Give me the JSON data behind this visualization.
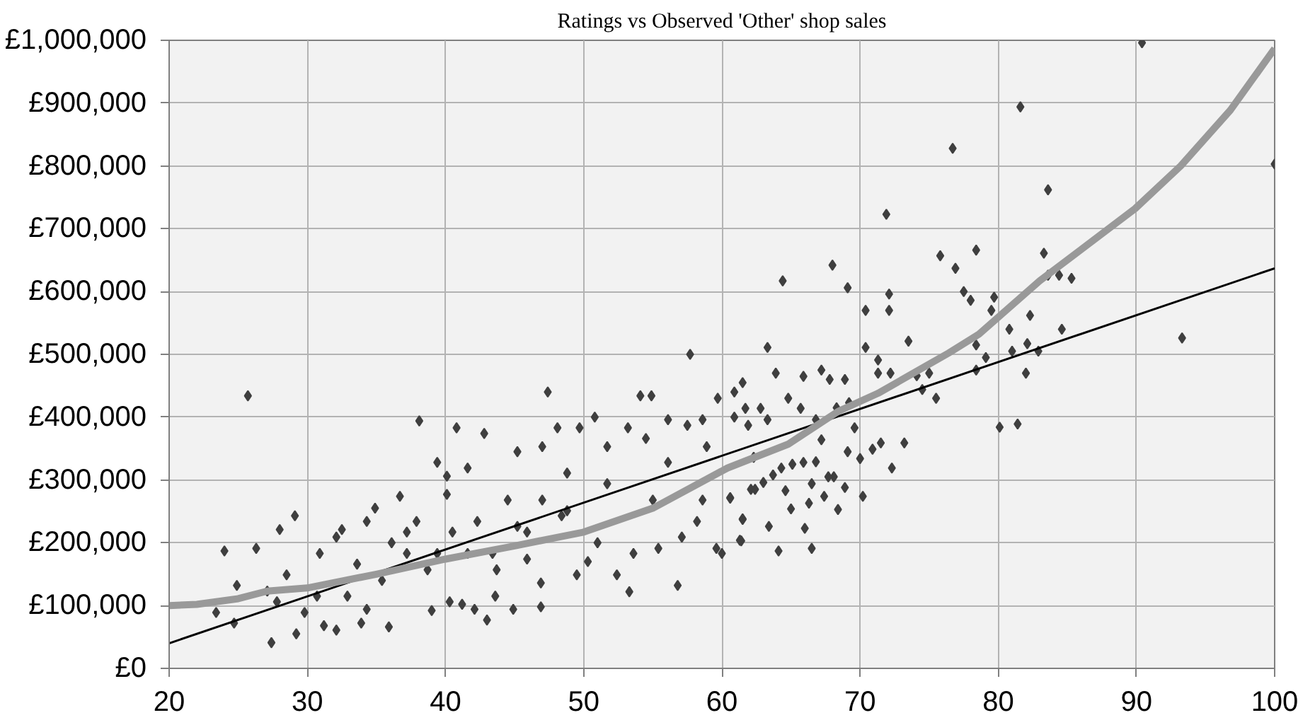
{
  "chart_data": {
    "type": "scatter",
    "title": "Ratings vs Observed 'Other' shop sales",
    "xlim": [
      20,
      100
    ],
    "ylim": [
      0,
      1000000
    ],
    "xticks": [
      20,
      30,
      40,
      50,
      60,
      70,
      80,
      90,
      100
    ],
    "yticks": [
      {
        "value": 0,
        "label": "£0"
      },
      {
        "value": 100000,
        "label": "£100,000"
      },
      {
        "value": 200000,
        "label": "£200,000"
      },
      {
        "value": 300000,
        "label": "£300,000"
      },
      {
        "value": 400000,
        "label": "£400,000"
      },
      {
        "value": 500000,
        "label": "£500,000"
      },
      {
        "value": 600000,
        "label": "£600,000"
      },
      {
        "value": 700000,
        "label": "£700,000"
      },
      {
        "value": 800000,
        "label": "£800,000"
      },
      {
        "value": 900000,
        "label": "£900,000"
      },
      {
        "value": 1000000,
        "label": "£1,000,000"
      }
    ],
    "grid": true,
    "series": [
      {
        "marker": "diamond",
        "color": "#3f3f3f",
        "x": [
          25.7,
          24.0,
          27.4,
          29.2,
          28.0,
          29.1,
          24.9,
          26.3,
          24.7,
          23.4,
          27.1,
          28.5,
          30.9,
          32.1,
          32.5,
          32.1,
          31.2,
          33.9,
          35.9,
          34.9,
          34.3,
          36.7,
          38.1,
          37.9,
          39.0,
          37.2,
          35.4,
          33.6,
          32.9,
          34.3,
          39.4,
          40.1,
          40.8,
          40.1,
          40.3,
          41.2,
          39.4,
          40.5,
          41.6,
          42.8,
          43.0,
          42.1,
          44.9,
          43.6,
          45.2,
          47.0,
          47.4,
          46.9,
          46.9,
          45.9,
          44.5,
          43.4,
          42.3,
          48.1,
          48.8,
          49.5,
          50.3,
          50.8,
          49.7,
          51.7,
          51.7,
          48.8,
          51.0,
          52.4,
          53.3,
          54.1,
          54.9,
          54.5,
          53.2,
          53.6,
          55.0,
          56.1,
          56.8,
          57.7,
          57.5,
          58.6,
          58.2,
          57.1,
          59.6,
          59.7,
          60.0,
          60.9,
          61.5,
          61.3,
          61.5,
          61.9,
          60.6,
          58.9,
          56.1,
          55.4,
          58.6,
          62.4,
          37.2,
          38.7,
          36.1,
          41.6,
          45.2,
          47.0,
          48.4,
          45.9,
          43.7,
          30.7,
          29.8,
          27.8,
          90.4,
          81.6,
          76.7,
          83.6,
          100.0,
          71.9,
          75.8,
          78.4,
          76.9,
          83.3,
          83.6,
          84.4,
          85.3,
          68.0,
          64.4,
          69.1,
          70.4,
          72.1,
          72.1,
          77.5,
          78.0,
          79.7,
          79.5,
          82.3,
          80.8,
          81.0,
          82.1,
          82.9,
          84.6,
          93.3,
          82.0,
          80.1,
          81.4,
          79.1,
          78.4,
          78.4,
          73.5,
          75.5,
          75.0,
          74.1,
          74.5,
          70.4,
          71.3,
          71.3,
          72.2,
          73.2,
          72.3,
          71.5,
          70.9,
          70.0,
          70.2,
          69.6,
          69.2,
          68.9,
          67.8,
          67.2,
          65.9,
          63.3,
          63.9,
          60.9,
          61.7,
          62.8,
          63.3,
          64.8,
          65.7,
          66.8,
          68.3,
          67.2,
          69.1,
          68.1,
          68.9,
          68.4,
          67.4,
          66.5,
          66.3,
          66.5,
          66.0,
          65.0,
          64.1,
          63.4,
          61.4,
          61.5,
          62.1,
          63.0,
          64.3,
          65.1,
          65.9,
          66.8,
          67.7,
          64.6,
          63.7,
          62.3,
          60.6
        ],
        "values": [
          434000,
          187000,
          41000,
          55000,
          221000,
          243000,
          132000,
          191000,
          72000,
          89000,
          123000,
          149000,
          183000,
          209000,
          221000,
          61000,
          68000,
          72000,
          66000,
          255000,
          234000,
          274000,
          394000,
          234000,
          92000,
          183000,
          140000,
          166000,
          115000,
          94000,
          328000,
          306000,
          383000,
          277000,
          106000,
          102000,
          183000,
          217000,
          319000,
          374000,
          77000,
          94000,
          94000,
          115000,
          345000,
          353000,
          440000,
          98000,
          136000,
          217000,
          268000,
          183000,
          234000,
          383000,
          311000,
          149000,
          170000,
          400000,
          383000,
          353000,
          294000,
          251000,
          200000,
          149000,
          122000,
          434000,
          434000,
          366000,
          383000,
          183000,
          268000,
          396000,
          132000,
          500000,
          387000,
          396000,
          234000,
          209000,
          191000,
          430000,
          183000,
          440000,
          455000,
          204000,
          238000,
          387000,
          272000,
          353000,
          328000,
          191000,
          268000,
          285000,
          217000,
          157000,
          200000,
          183000,
          226000,
          268000,
          243000,
          174000,
          157000,
          115000,
          89000,
          106000,
          996000,
          894000,
          828000,
          762000,
          803000,
          723000,
          657000,
          666000,
          637000,
          661000,
          626000,
          626000,
          621000,
          642000,
          617000,
          606000,
          570000,
          596000,
          570000,
          600000,
          586000,
          591000,
          570000,
          562000,
          540000,
          505000,
          517000,
          505000,
          540000,
          526000,
          470000,
          384000,
          389000,
          495000,
          475000,
          515000,
          521000,
          430000,
          470000,
          466000,
          444000,
          511000,
          491000,
          470000,
          470000,
          359000,
          319000,
          359000,
          349000,
          334000,
          274000,
          383000,
          423000,
          460000,
          460000,
          475000,
          465000,
          511000,
          470000,
          400000,
          414000,
          414000,
          396000,
          430000,
          414000,
          396000,
          415000,
          364000,
          345000,
          305000,
          288000,
          253000,
          274000,
          294000,
          263000,
          191000,
          223000,
          254000,
          187000,
          226000,
          203000,
          237000,
          285000,
          296000,
          319000,
          325000,
          328000,
          329000,
          305000,
          283000,
          308000,
          336000,
          271000
        ]
      },
      {
        "type": "line",
        "color": "#000000",
        "x": [
          20,
          100
        ],
        "values": [
          40000,
          637000
        ]
      },
      {
        "type": "line",
        "color": "#999999",
        "x": [
          20,
          22,
          25,
          27.1,
          30,
          35,
          40,
          45,
          50,
          55,
          60.4,
          64.8,
          68.4,
          71.3,
          76.4,
          78.6,
          83,
          89.9,
          93.2,
          96.8,
          100
        ],
        "values": [
          100000,
          102000,
          111000,
          123000,
          128000,
          150000,
          174000,
          195000,
          217000,
          255000,
          319000,
          357000,
          409000,
          438000,
          502000,
          532000,
          617000,
          732000,
          800000,
          889000,
          987000
        ]
      }
    ]
  }
}
